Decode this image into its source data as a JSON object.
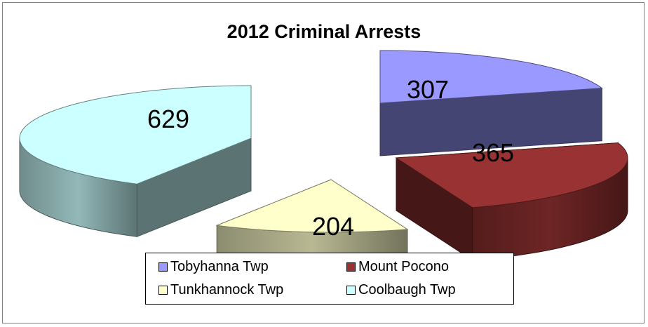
{
  "chart_data": {
    "type": "pie",
    "title": "2012 Criminal Arrests",
    "labels": [
      "Tobyhanna Twp",
      "Mount Pocono",
      "Tunkhannock Twp",
      "Coolbaugh Twp"
    ],
    "values": [
      307,
      365,
      204,
      629
    ],
    "data_labels": [
      "307",
      "365",
      "204",
      "629"
    ],
    "colors": [
      "#9999ff",
      "#993333",
      "#ffffcc",
      "#ccffff"
    ],
    "legend_position": "bottom",
    "style": "3d-exploded"
  }
}
